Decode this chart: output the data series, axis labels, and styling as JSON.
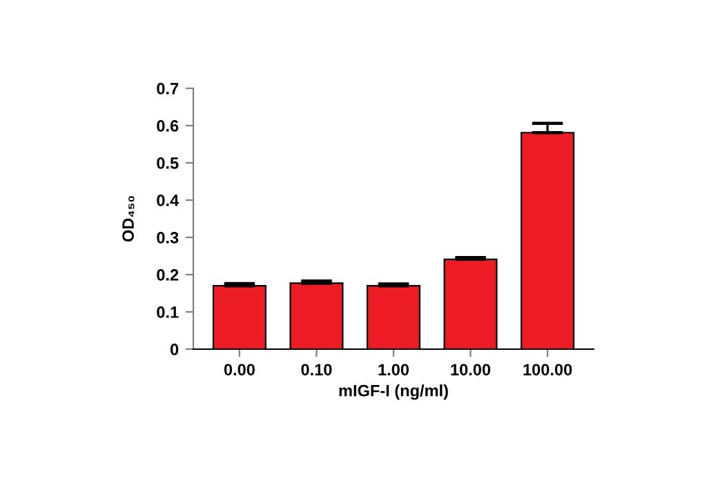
{
  "chart_data": {
    "type": "bar",
    "xlabel": "mIGF-I (ng/ml)",
    "ylabel": "OD₄₅₀",
    "categories": [
      "0.00",
      "0.10",
      "1.00",
      "10.00",
      "100.00"
    ],
    "values": [
      0.17,
      0.177,
      0.17,
      0.241,
      0.581
    ],
    "errors": [
      [
        0.17,
        0.176
      ],
      [
        0.177,
        0.183
      ],
      [
        0.17,
        0.175
      ],
      [
        0.241,
        0.246
      ],
      [
        0.581,
        0.606
      ]
    ],
    "color": "#ec1c24",
    "ylim": [
      0,
      0.7
    ],
    "yticks": [
      0,
      0.1,
      0.2,
      0.3,
      0.4,
      0.5,
      0.6,
      0.7
    ],
    "grid": false,
    "legend": false
  }
}
